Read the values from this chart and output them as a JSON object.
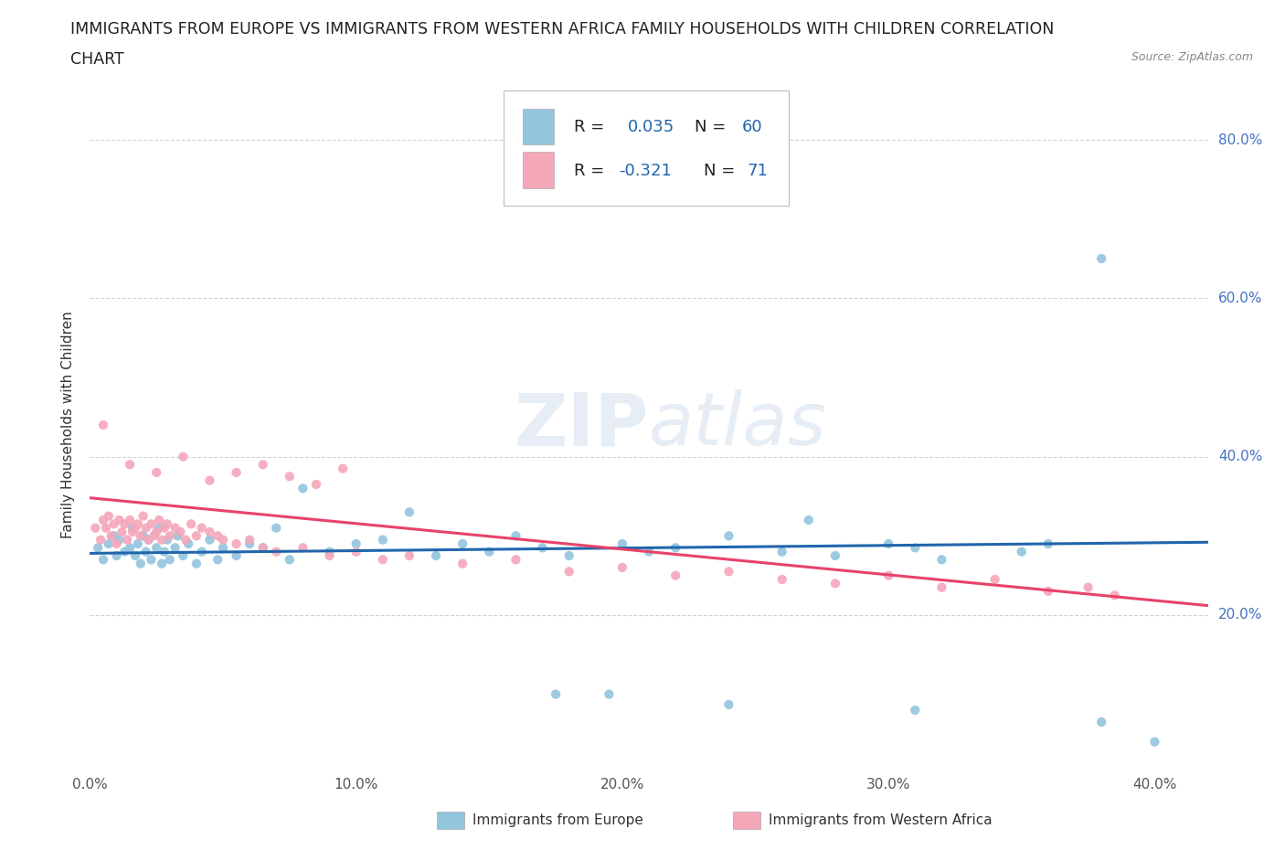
{
  "title_line1": "IMMIGRANTS FROM EUROPE VS IMMIGRANTS FROM WESTERN AFRICA FAMILY HOUSEHOLDS WITH CHILDREN CORRELATION",
  "title_line2": "CHART",
  "source_text": "Source: ZipAtlas.com",
  "ylabel": "Family Households with Children",
  "xlim": [
    0.0,
    0.42
  ],
  "ylim": [
    0.0,
    0.88
  ],
  "xticks": [
    0.0,
    0.1,
    0.2,
    0.3,
    0.4
  ],
  "xtick_labels": [
    "0.0%",
    "10.0%",
    "20.0%",
    "30.0%",
    "40.0%"
  ],
  "yticks": [
    0.2,
    0.4,
    0.6,
    0.8
  ],
  "ytick_labels": [
    "20.0%",
    "40.0%",
    "60.0%",
    "80.0%"
  ],
  "blue_color": "#92c5de",
  "pink_color": "#f4a7b9",
  "blue_line_color": "#2166ac",
  "pink_line_color": "#e8436a",
  "watermark_zip": "ZIP",
  "watermark_atlas": "atlas",
  "grid_color": "#cccccc",
  "background_color": "#ffffff",
  "title_fontsize": 12.5,
  "axis_label_fontsize": 11,
  "tick_fontsize": 11,
  "blue_scatter_x": [
    0.003,
    0.005,
    0.007,
    0.009,
    0.01,
    0.011,
    0.013,
    0.015,
    0.016,
    0.017,
    0.018,
    0.019,
    0.02,
    0.021,
    0.022,
    0.023,
    0.025,
    0.026,
    0.027,
    0.028,
    0.029,
    0.03,
    0.032,
    0.033,
    0.035,
    0.037,
    0.04,
    0.042,
    0.045,
    0.048,
    0.05,
    0.055,
    0.06,
    0.065,
    0.07,
    0.075,
    0.08,
    0.09,
    0.1,
    0.11,
    0.12,
    0.13,
    0.14,
    0.15,
    0.16,
    0.17,
    0.18,
    0.2,
    0.21,
    0.22,
    0.24,
    0.26,
    0.27,
    0.28,
    0.3,
    0.31,
    0.32,
    0.35,
    0.36,
    0.38
  ],
  "blue_scatter_y": [
    0.285,
    0.27,
    0.29,
    0.3,
    0.275,
    0.295,
    0.28,
    0.285,
    0.31,
    0.275,
    0.29,
    0.265,
    0.3,
    0.28,
    0.295,
    0.27,
    0.285,
    0.31,
    0.265,
    0.28,
    0.295,
    0.27,
    0.285,
    0.3,
    0.275,
    0.29,
    0.265,
    0.28,
    0.295,
    0.27,
    0.285,
    0.275,
    0.29,
    0.285,
    0.31,
    0.27,
    0.36,
    0.28,
    0.29,
    0.295,
    0.33,
    0.275,
    0.29,
    0.28,
    0.3,
    0.285,
    0.275,
    0.29,
    0.28,
    0.285,
    0.3,
    0.28,
    0.32,
    0.275,
    0.29,
    0.285,
    0.27,
    0.28,
    0.29,
    0.65
  ],
  "blue_scatter_x2": [
    0.175,
    0.195,
    0.24,
    0.31,
    0.38,
    0.4
  ],
  "blue_scatter_y2": [
    0.1,
    0.1,
    0.087,
    0.08,
    0.065,
    0.04
  ],
  "pink_scatter_x": [
    0.002,
    0.004,
    0.005,
    0.006,
    0.007,
    0.008,
    0.009,
    0.01,
    0.011,
    0.012,
    0.013,
    0.014,
    0.015,
    0.016,
    0.017,
    0.018,
    0.019,
    0.02,
    0.021,
    0.022,
    0.023,
    0.024,
    0.025,
    0.026,
    0.027,
    0.028,
    0.029,
    0.03,
    0.032,
    0.034,
    0.036,
    0.038,
    0.04,
    0.042,
    0.045,
    0.048,
    0.05,
    0.055,
    0.06,
    0.065,
    0.07,
    0.08,
    0.09,
    0.1,
    0.11,
    0.12,
    0.14,
    0.16,
    0.18,
    0.2,
    0.22,
    0.24,
    0.26,
    0.28,
    0.3,
    0.32,
    0.34,
    0.36,
    0.375,
    0.385,
    0.005,
    0.015,
    0.025,
    0.035,
    0.045,
    0.055,
    0.065,
    0.075,
    0.085,
    0.095
  ],
  "pink_scatter_y": [
    0.31,
    0.295,
    0.32,
    0.31,
    0.325,
    0.3,
    0.315,
    0.29,
    0.32,
    0.305,
    0.315,
    0.295,
    0.32,
    0.305,
    0.31,
    0.315,
    0.3,
    0.325,
    0.31,
    0.295,
    0.315,
    0.3,
    0.305,
    0.32,
    0.295,
    0.31,
    0.315,
    0.3,
    0.31,
    0.305,
    0.295,
    0.315,
    0.3,
    0.31,
    0.305,
    0.3,
    0.295,
    0.29,
    0.295,
    0.285,
    0.28,
    0.285,
    0.275,
    0.28,
    0.27,
    0.275,
    0.265,
    0.27,
    0.255,
    0.26,
    0.25,
    0.255,
    0.245,
    0.24,
    0.25,
    0.235,
    0.245,
    0.23,
    0.235,
    0.225,
    0.44,
    0.39,
    0.38,
    0.4,
    0.37,
    0.38,
    0.39,
    0.375,
    0.365,
    0.385
  ],
  "blue_trend_x": [
    0.0,
    0.42
  ],
  "blue_trend_y": [
    0.278,
    0.292
  ],
  "pink_trend_x": [
    0.0,
    0.42
  ],
  "pink_trend_y": [
    0.348,
    0.212
  ]
}
